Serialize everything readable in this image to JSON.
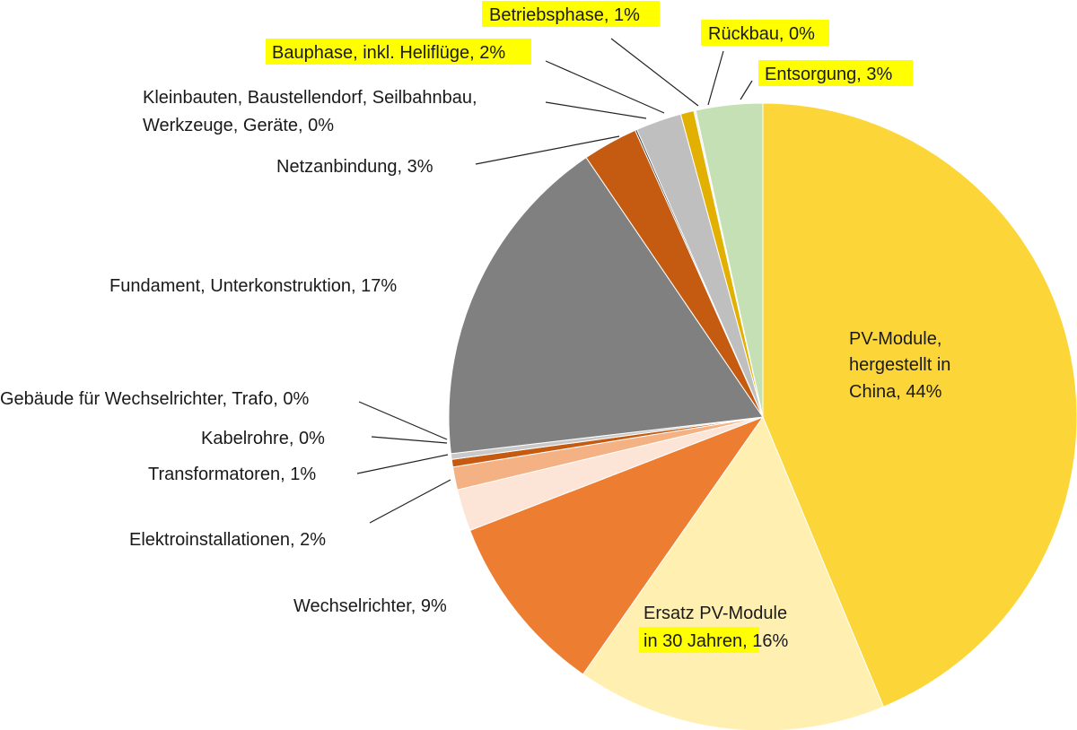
{
  "chart_data": {
    "type": "pie",
    "title": "",
    "start_angle_deg": 0,
    "direction": "clockwise",
    "slices": [
      {
        "key": "pv",
        "label": "PV-Module, hergestellt in China, 44%",
        "value": 44.6,
        "color": "#fcd638",
        "highlight": false
      },
      {
        "key": "ersatz",
        "label": "Ersatz PV-Module in 30 Jahren, 16%",
        "value": 16.3,
        "color": "#fff0b2",
        "highlight": true
      },
      {
        "key": "wr",
        "label": "Wechselrichter, 9%",
        "value": 9.6,
        "color": "#ed7d31",
        "highlight": false
      },
      {
        "key": "elektro",
        "label": "Elektroinstallationen, 2%",
        "value": 2.2,
        "color": "#fce4d6",
        "highlight": false
      },
      {
        "key": "trafo",
        "label": "Transformatoren, 1%",
        "value": 1.2,
        "color": "#f4b183",
        "highlight": false
      },
      {
        "key": "kabel",
        "label": "Kabelrohre, 0%",
        "value": 0.4,
        "color": "#c55a11",
        "highlight": false
      },
      {
        "key": "gebaeude",
        "label": "Gebäude für Wechselrichter, Trafo, 0%",
        "value": 0.3,
        "color": "#c9c9c9",
        "highlight": false
      },
      {
        "key": "fundament",
        "label": "Fundament, Unterkonstruktion, 17%",
        "value": 17.7,
        "color": "#808080",
        "highlight": false
      },
      {
        "key": "netz",
        "label": "Netzanbindung, 3%",
        "value": 2.9,
        "color": "#c55a11",
        "highlight": false
      },
      {
        "key": "klein",
        "label": "Kleinbauten, Baustellendorf, Seilbahnbau, Werkzeuge, Geräte, 0%",
        "value": 0.1,
        "color": "#3a3a3a",
        "highlight": false
      },
      {
        "key": "bau",
        "label": "Bauphase, inkl. Heliflüge, 2%",
        "value": 2.4,
        "color": "#bfbfbf",
        "highlight": true
      },
      {
        "key": "betrieb",
        "label": "Betriebsphase, 1%",
        "value": 0.7,
        "color": "#e2b000",
        "highlight": true
      },
      {
        "key": "rueckbau",
        "label": "Rückbau, 0%",
        "value": 0.1,
        "color": "#f2f2f2",
        "highlight": true
      },
      {
        "key": "entsorgung",
        "label": "Entsorgung, 3%",
        "value": 3.5,
        "color": "#c5e0b4",
        "highlight": true
      }
    ]
  },
  "labels": {
    "pv": [
      "PV-Module,",
      "hergestellt in",
      "China, 44%"
    ],
    "ersatz": [
      "Ersatz PV-Module",
      "in 30 Jahren,",
      " 16%"
    ],
    "wr": [
      "Wechselrichter, 9%"
    ],
    "elektro": [
      "Elektroinstallationen, 2%"
    ],
    "trafo": [
      "Transformatoren, 1%"
    ],
    "kabel": [
      "Kabelrohre, 0%"
    ],
    "gebaeude": [
      "Gebäude für Wechselrichter, Trafo, 0%"
    ],
    "fundament": [
      "Fundament, Unterkonstruktion, 17%"
    ],
    "netz": [
      "Netzanbindung, 3%"
    ],
    "klein": [
      "Kleinbauten, Baustellendorf, Seilbahnbau,",
      "Werkzeuge, Geräte, 0%"
    ],
    "bau": [
      "Bauphase, inkl. Heliflüge, 2%"
    ],
    "betrieb": [
      "Betriebsphase, 1%"
    ],
    "rueckbau": [
      "Rückbau, 0%"
    ],
    "entsorgung": [
      "Entsorgung, 3%"
    ]
  }
}
